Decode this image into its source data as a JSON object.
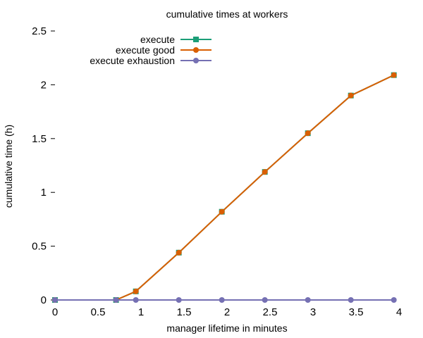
{
  "chart_data": {
    "type": "line",
    "title": "cumulative times at workers",
    "xlabel": "manager lifetime in minutes",
    "ylabel": "cumulative time (h)",
    "xlim": [
      0,
      4
    ],
    "ylim": [
      0,
      2.5
    ],
    "xticks": [
      "0",
      "0.5",
      "1",
      "1.5",
      "2",
      "2.5",
      "3",
      "3.5",
      "4"
    ],
    "yticks": [
      "0",
      "0.5",
      "1",
      "1.5",
      "2",
      "2.5"
    ],
    "grid": false,
    "legend_position": "top-left",
    "series": [
      {
        "name": "execute",
        "color": "#1b9e77",
        "marker": "square",
        "x": [
          0.0,
          0.71,
          0.94,
          1.44,
          1.94,
          2.44,
          2.94,
          3.44,
          3.94
        ],
        "y": [
          0.0,
          0.0,
          0.08,
          0.44,
          0.82,
          1.19,
          1.55,
          1.9,
          2.09
        ]
      },
      {
        "name": "execute good",
        "color": "#d95f02",
        "marker": "circle",
        "x": [
          0.0,
          0.71,
          0.94,
          1.44,
          1.94,
          2.44,
          2.94,
          3.44,
          3.94
        ],
        "y": [
          0.0,
          0.0,
          0.08,
          0.44,
          0.82,
          1.19,
          1.55,
          1.9,
          2.09
        ]
      },
      {
        "name": "execute exhaustion",
        "color": "#7570b3",
        "marker": "circle",
        "x": [
          0.0,
          0.71,
          0.94,
          1.44,
          1.94,
          2.44,
          2.94,
          3.44,
          3.94
        ],
        "y": [
          0.0,
          0.0,
          0.0,
          0.0,
          0.0,
          0.0,
          0.0,
          0.0,
          0.0
        ]
      }
    ]
  }
}
